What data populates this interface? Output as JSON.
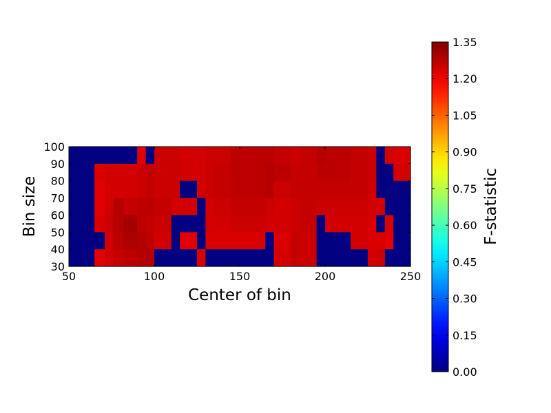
{
  "chart_data": {
    "type": "heatmap",
    "xlabel": "Center of bin",
    "ylabel": "Bin size",
    "colorbar_label": "F-statistic",
    "xlim": [
      50,
      250
    ],
    "ylim": [
      30,
      100
    ],
    "x_ticks": [
      "50",
      "100",
      "150",
      "200",
      "250"
    ],
    "y_ticks": [
      "30",
      "40",
      "50",
      "60",
      "70",
      "80",
      "90",
      "100"
    ],
    "colorbar_range": [
      0.0,
      1.35
    ],
    "colorbar_ticks": [
      "0.00",
      "0.15",
      "0.30",
      "0.45",
      "0.60",
      "0.75",
      "0.90",
      "1.05",
      "1.20",
      "1.35"
    ],
    "colormap": "jet",
    "x_bin_edges": [
      50,
      65,
      71,
      76,
      82,
      90,
      95,
      100,
      110,
      115,
      125,
      130,
      135,
      145,
      165,
      170,
      180,
      185,
      195,
      200,
      215,
      225,
      230,
      235,
      240,
      250
    ],
    "rows": [
      {
        "y": [
          90,
          100
        ],
        "values": [
          0,
          0,
          0,
          0,
          0,
          1.22,
          0,
          1.25,
          1.25,
          1.24,
          1.24,
          1.25,
          1.25,
          1.27,
          1.27,
          1.26,
          1.25,
          1.26,
          1.28,
          1.27,
          1.26,
          1.25,
          0,
          1.24,
          1.23
        ]
      },
      {
        "y": [
          80,
          90
        ],
        "values": [
          0,
          1.23,
          1.24,
          1.24,
          1.24,
          1.25,
          1.26,
          1.25,
          1.25,
          1.24,
          1.24,
          1.25,
          1.26,
          1.27,
          1.28,
          1.27,
          1.26,
          1.26,
          1.27,
          1.27,
          1.26,
          1.25,
          0,
          0,
          1.24
        ]
      },
      {
        "y": [
          70,
          80
        ],
        "values": [
          0,
          1.22,
          1.24,
          1.24,
          1.24,
          1.25,
          1.26,
          1.25,
          1.25,
          0,
          1.24,
          1.25,
          1.26,
          1.27,
          1.28,
          1.25,
          1.26,
          1.26,
          1.26,
          1.26,
          1.26,
          1.24,
          0,
          0,
          0
        ]
      },
      {
        "y": [
          60,
          70
        ],
        "values": [
          0,
          1.22,
          1.24,
          1.28,
          1.26,
          1.27,
          1.27,
          1.26,
          1.24,
          1.24,
          0,
          1.24,
          1.25,
          1.26,
          1.25,
          1.24,
          1.25,
          1.26,
          1.25,
          1.25,
          1.25,
          1.24,
          1.24,
          0,
          0
        ]
      },
      {
        "y": [
          50,
          60
        ],
        "values": [
          0,
          1.23,
          1.25,
          1.28,
          1.3,
          1.27,
          1.26,
          1.25,
          0,
          0,
          0,
          1.24,
          1.24,
          1.25,
          1.24,
          1.24,
          1.25,
          1.26,
          0,
          1.24,
          1.24,
          1.23,
          0,
          1.23,
          0
        ]
      },
      {
        "y": [
          40,
          50
        ],
        "values": [
          0,
          0,
          1.24,
          1.27,
          1.29,
          1.28,
          1.27,
          1.24,
          0,
          1.22,
          0,
          1.23,
          1.23,
          1.23,
          0,
          1.23,
          1.26,
          1.25,
          0,
          0,
          1.24,
          1.23,
          1.23,
          1.22,
          0
        ]
      },
      {
        "y": [
          30,
          40
        ],
        "values": [
          0,
          1.22,
          1.24,
          1.26,
          1.27,
          1.28,
          1.28,
          0,
          0,
          0,
          1.23,
          0,
          0,
          0,
          0,
          1.24,
          1.26,
          1.25,
          0,
          0,
          0,
          1.24,
          1.25,
          0,
          0
        ]
      }
    ]
  }
}
